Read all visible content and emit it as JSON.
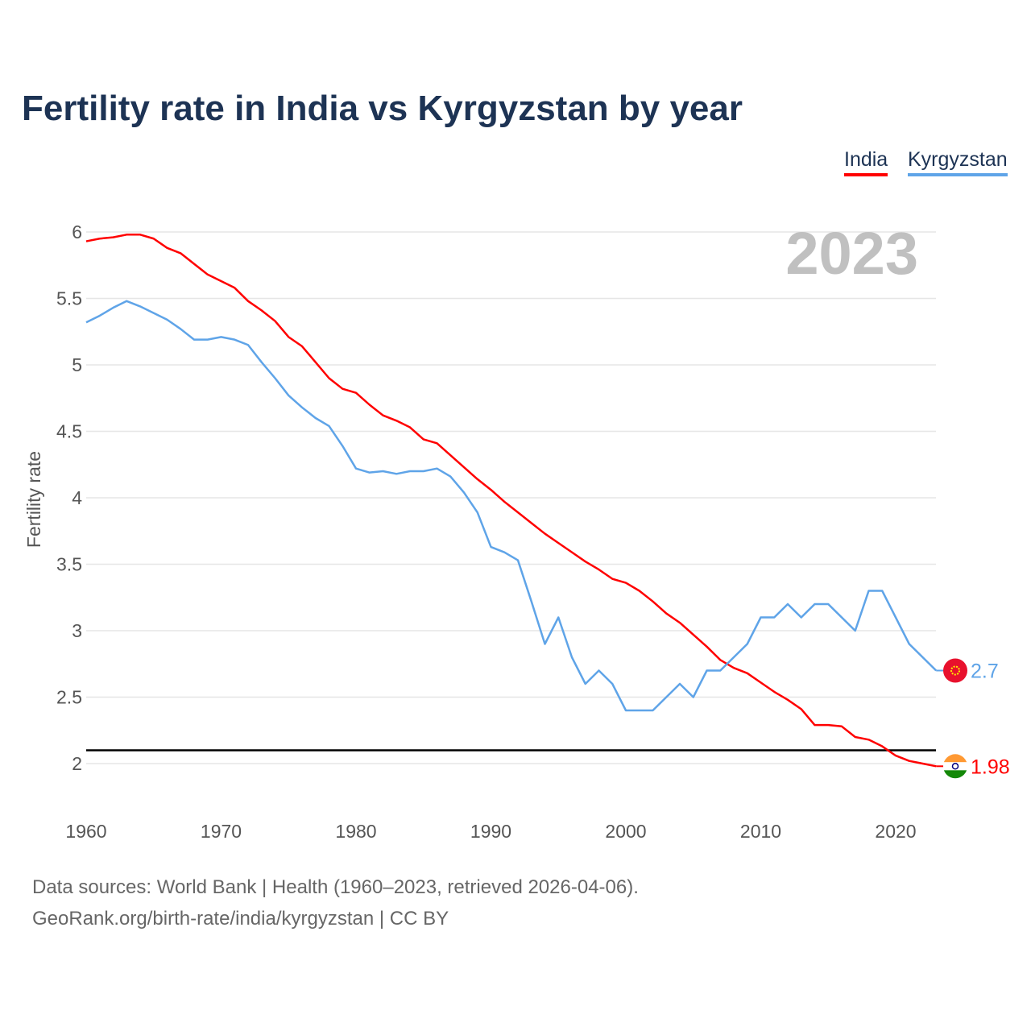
{
  "title": "Fertility rate in India vs Kyrgyzstan by year",
  "legend": {
    "india": "India",
    "kyrgyzstan": "Kyrgyzstan"
  },
  "year_label": "2023",
  "footer": {
    "line1": "Data sources: World Bank | Health (1960–2023, retrieved 2026-04-06).",
    "line2": "GeoRank.org/birth-rate/india/kyrgyzstan | CC BY"
  },
  "colors": {
    "india": "#ff0000",
    "kyrgyzstan": "#5fa4e8",
    "reference": "#000000"
  },
  "chart_data": {
    "type": "line",
    "title": "Fertility rate in India vs Kyrgyzstan by year",
    "xlabel": "",
    "ylabel": "Fertility rate",
    "xlim": [
      1960,
      2023
    ],
    "ylim": [
      1.75,
      6.1
    ],
    "xticks": [
      1960,
      1970,
      1980,
      1990,
      2000,
      2010,
      2020
    ],
    "yticks": [
      2,
      2.5,
      3,
      3.5,
      4,
      4.5,
      5,
      5.5,
      6
    ],
    "ytick_labels": [
      "2",
      "2.5",
      "3",
      "3.5",
      "4",
      "4.5",
      "5",
      "5.5",
      "6"
    ],
    "reference_line": 2.1,
    "x_start": 1960,
    "series": [
      {
        "name": "India",
        "end_label": "1.98",
        "values": [
          5.93,
          5.95,
          5.96,
          5.98,
          5.98,
          5.95,
          5.88,
          5.84,
          5.76,
          5.68,
          5.63,
          5.58,
          5.48,
          5.41,
          5.33,
          5.21,
          5.14,
          5.02,
          4.9,
          4.82,
          4.79,
          4.7,
          4.62,
          4.58,
          4.53,
          4.44,
          4.41,
          4.32,
          4.23,
          4.14,
          4.06,
          3.97,
          3.89,
          3.81,
          3.73,
          3.66,
          3.59,
          3.52,
          3.46,
          3.39,
          3.36,
          3.3,
          3.22,
          3.13,
          3.06,
          2.97,
          2.88,
          2.78,
          2.72,
          2.68,
          2.61,
          2.54,
          2.48,
          2.41,
          2.29,
          2.29,
          2.28,
          2.2,
          2.18,
          2.13,
          2.06,
          2.02,
          2.0,
          1.98
        ]
      },
      {
        "name": "Kyrgyzstan",
        "end_label": "2.7",
        "values": [
          5.32,
          5.37,
          5.43,
          5.48,
          5.44,
          5.39,
          5.34,
          5.27,
          5.19,
          5.19,
          5.21,
          5.19,
          5.15,
          5.02,
          4.9,
          4.77,
          4.68,
          4.6,
          4.54,
          4.39,
          4.22,
          4.19,
          4.2,
          4.18,
          4.2,
          4.2,
          4.22,
          4.16,
          4.04,
          3.89,
          3.63,
          3.59,
          3.53,
          3.22,
          2.9,
          3.1,
          2.8,
          2.6,
          2.7,
          2.6,
          2.4,
          2.4,
          2.4,
          2.5,
          2.6,
          2.5,
          2.7,
          2.7,
          2.8,
          2.9,
          3.1,
          3.1,
          3.2,
          3.1,
          3.2,
          3.2,
          3.1,
          3.0,
          3.3,
          3.3,
          3.1,
          2.9,
          2.8,
          2.7
        ]
      }
    ]
  }
}
